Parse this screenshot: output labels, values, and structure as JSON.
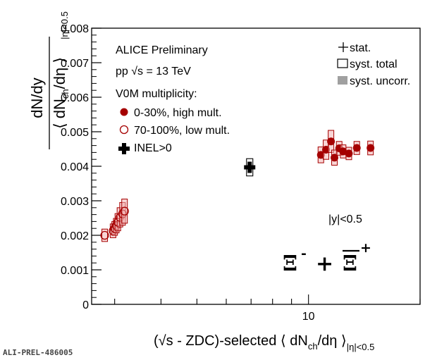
{
  "chart_data": {
    "type": "scatter",
    "collaboration_label": "ALICE Preliminary",
    "system_prefix": "pp ",
    "system_sqrt_s": "√s",
    "system_suffix": " = 13 TeV",
    "multiplicity_header": "V0M multiplicity:",
    "rapidity_label": "|y|<0.5",
    "particle_xi": "Ξ",
    "particle_minus": "-",
    "particle_plus_sign": "+",
    "particle_plus": "+",
    "preliminary_tag": "ALI-PREL-486005",
    "ylabel_num": "dN/dy",
    "ylabel_den": "⟨ dN",
    "ylabel_den_sub": "ch",
    "ylabel_den_tail": "/dη ⟩",
    "ylabel_sub": "|η|<0.5",
    "xlabel_open": "(",
    "xlabel_sqrt": "√s",
    "xlabel_mid": " - ZDC)-selected ⟨ dN",
    "xlabel_sub_ch": "ch",
    "xlabel_tail": "/dη ⟩",
    "xlabel_sub_eta": "|η|<0.5",
    "legend": {
      "stat": "stat.",
      "syst_total": "syst. total",
      "syst_uncorr": "syst. uncorr.",
      "high_mult": "0-30%, high mult.",
      "low_mult": "70-100%, low mult.",
      "inel": "INEL>0"
    },
    "x_scale": "log",
    "xlim": [
      2.6,
      20
    ],
    "ylim": [
      0,
      0.008
    ],
    "x_ticks": [
      {
        "value": 10,
        "label": "10"
      }
    ],
    "y_ticks": [
      {
        "value": 0,
        "label": "0"
      },
      {
        "value": 0.001,
        "label": "0.001"
      },
      {
        "value": 0.002,
        "label": "0.002"
      },
      {
        "value": 0.003,
        "label": "0.003"
      },
      {
        "value": 0.004,
        "label": "0.004"
      },
      {
        "value": 0.005,
        "label": "0.005"
      },
      {
        "value": 0.006,
        "label": "0.006"
      },
      {
        "value": 0.007,
        "label": "0.007"
      },
      {
        "value": 0.008,
        "label": "0.008"
      }
    ],
    "series": [
      {
        "name": "0-30%, high mult.",
        "marker": "filled-circle",
        "color": "#a50000",
        "points": [
          {
            "x": 10.8,
            "y": 0.00433,
            "syst": 0.00023
          },
          {
            "x": 11.15,
            "y": 0.00448,
            "syst": 0.00028
          },
          {
            "x": 11.5,
            "y": 0.00472,
            "syst": 0.00032
          },
          {
            "x": 11.75,
            "y": 0.00425,
            "syst": 0.00022
          },
          {
            "x": 12.1,
            "y": 0.00452,
            "syst": 0.0002
          },
          {
            "x": 12.4,
            "y": 0.00443,
            "syst": 0.00019
          },
          {
            "x": 12.85,
            "y": 0.00437,
            "syst": 0.00018
          },
          {
            "x": 13.5,
            "y": 0.00453,
            "syst": 0.00019
          },
          {
            "x": 14.7,
            "y": 0.00453,
            "syst": 0.0002
          }
        ]
      },
      {
        "name": "70-100%, low mult.",
        "marker": "open-circle",
        "color": "#a50000",
        "points": [
          {
            "x": 2.82,
            "y": 0.002,
            "syst": 0.00018
          },
          {
            "x": 2.97,
            "y": 0.00213,
            "syst": 0.0002
          },
          {
            "x": 3.0,
            "y": 0.0022,
            "syst": 0.0002
          },
          {
            "x": 3.03,
            "y": 0.00228,
            "syst": 0.00021
          },
          {
            "x": 3.06,
            "y": 0.00238,
            "syst": 0.00025
          },
          {
            "x": 3.1,
            "y": 0.00252,
            "syst": 0.00028
          },
          {
            "x": 3.15,
            "y": 0.00262,
            "syst": 0.00033
          },
          {
            "x": 3.19,
            "y": 0.0027,
            "syst": 0.00035
          }
        ]
      },
      {
        "name": "INEL>0",
        "marker": "filled-cross",
        "color": "#000000",
        "points": [
          {
            "x": 6.94,
            "y": 0.00397,
            "syst": 0.00025
          }
        ]
      }
    ]
  }
}
